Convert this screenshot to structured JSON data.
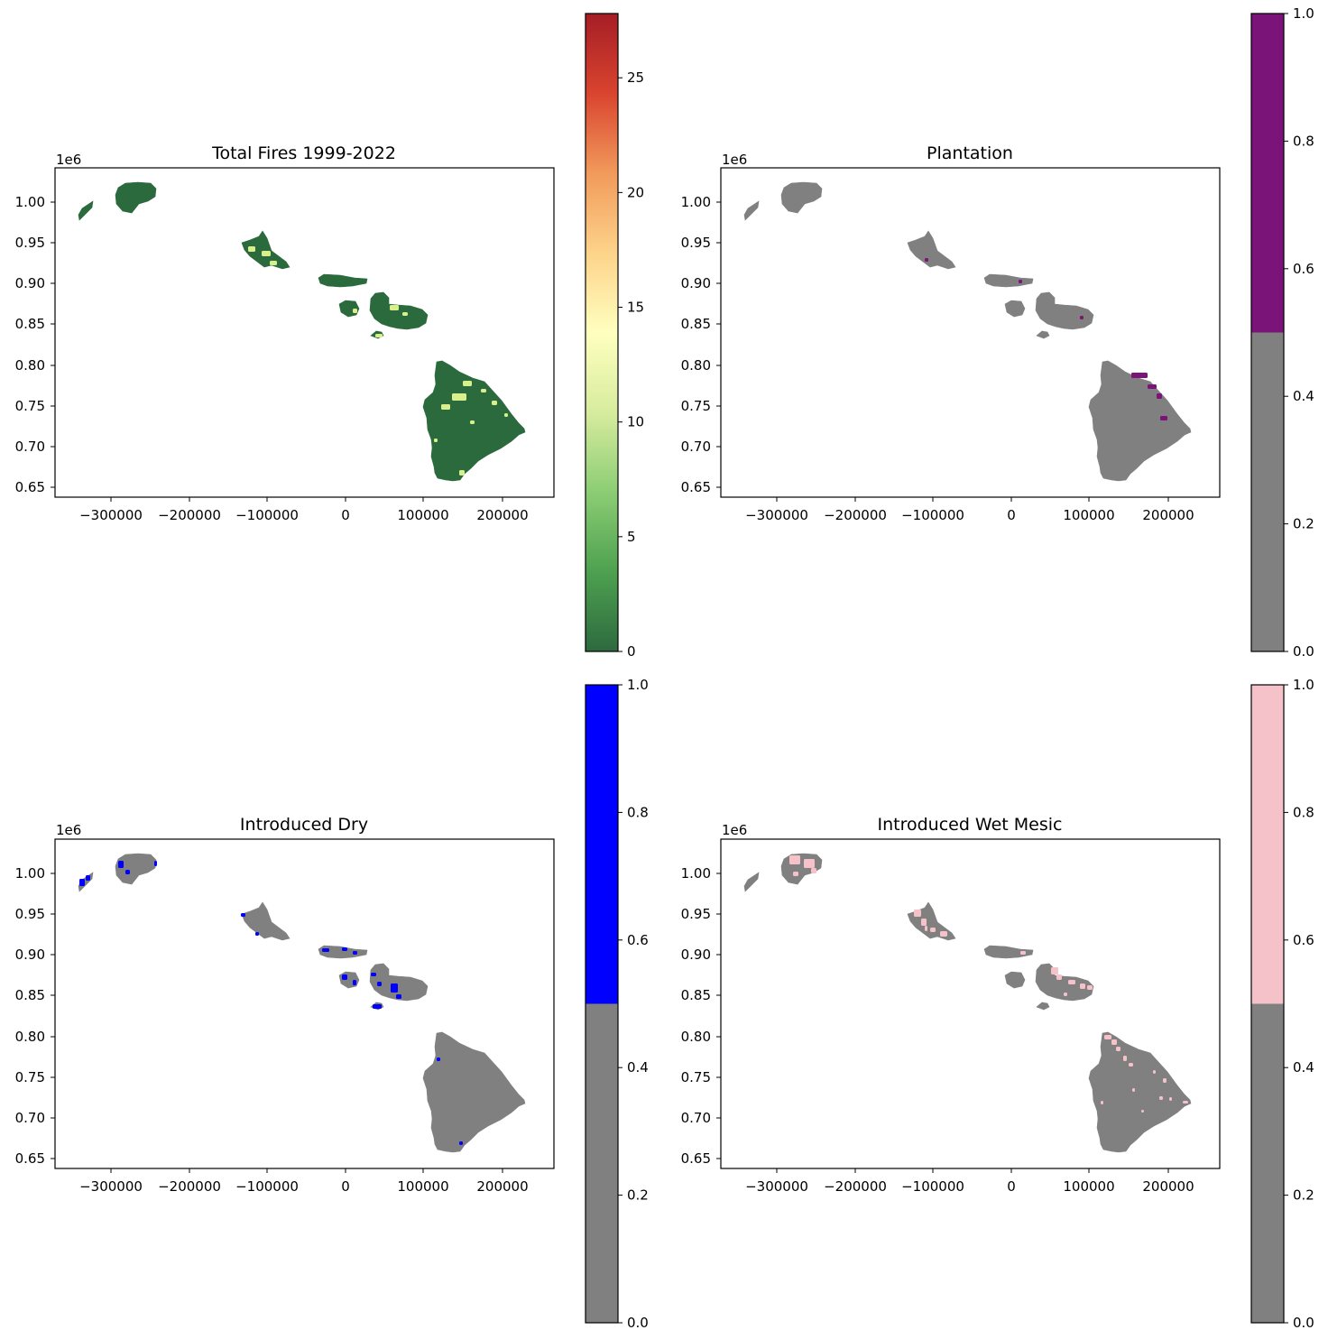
{
  "figure": {
    "panels": [
      {
        "title": "Total Fires 1999-2022",
        "offset_label": "1e6",
        "xticks": [
          "−300000",
          "−200000",
          "−100000",
          "0",
          "100000",
          "200000"
        ],
        "yticks": [
          "1.00",
          "0.95",
          "0.90",
          "0.85",
          "0.80",
          "0.75",
          "0.70",
          "0.65"
        ],
        "land_color": "#2b6a3d",
        "highlight_color": "#d9ef8b",
        "colorbar": {
          "type": "gradient",
          "stops": [
            "#2d6a3f",
            "#4ea150",
            "#8ccd74",
            "#d7ec9e",
            "#ffffbf",
            "#fdd38a",
            "#f19a5b",
            "#d9442f",
            "#a51d25"
          ],
          "ticks": [
            "0",
            "5",
            "10",
            "15",
            "20",
            "25"
          ]
        }
      },
      {
        "title": "Plantation",
        "offset_label": "1e6",
        "xticks": [
          "−300000",
          "−200000",
          "−100000",
          "0",
          "100000",
          "200000"
        ],
        "yticks": [
          "1.00",
          "0.95",
          "0.90",
          "0.85",
          "0.80",
          "0.75",
          "0.70",
          "0.65"
        ],
        "land_color": "#808080",
        "highlight_color": "#7b1479",
        "colorbar": {
          "type": "binary",
          "low_color": "#808080",
          "high_color": "#7b1479",
          "ticks": [
            "0.0",
            "0.2",
            "0.4",
            "0.6",
            "0.8",
            "1.0"
          ]
        }
      },
      {
        "title": "Introduced Dry",
        "offset_label": "1e6",
        "xticks": [
          "−300000",
          "−200000",
          "−100000",
          "0",
          "100000",
          "200000"
        ],
        "yticks": [
          "1.00",
          "0.95",
          "0.90",
          "0.85",
          "0.80",
          "0.75",
          "0.70",
          "0.65"
        ],
        "land_color": "#808080",
        "highlight_color": "#0000ff",
        "colorbar": {
          "type": "binary",
          "low_color": "#808080",
          "high_color": "#0000ff",
          "ticks": [
            "0.0",
            "0.2",
            "0.4",
            "0.6",
            "0.8",
            "1.0"
          ]
        }
      },
      {
        "title": "Introduced Wet Mesic",
        "offset_label": "1e6",
        "xticks": [
          "−300000",
          "−200000",
          "−100000",
          "0",
          "100000",
          "200000"
        ],
        "yticks": [
          "1.00",
          "0.95",
          "0.90",
          "0.85",
          "0.80",
          "0.75",
          "0.70",
          "0.65"
        ],
        "land_color": "#808080",
        "highlight_color": "#f4c2c8",
        "colorbar": {
          "type": "binary",
          "low_color": "#808080",
          "high_color": "#f4c2c8",
          "ticks": [
            "0.0",
            "0.2",
            "0.4",
            "0.6",
            "0.8",
            "1.0"
          ]
        }
      }
    ]
  }
}
